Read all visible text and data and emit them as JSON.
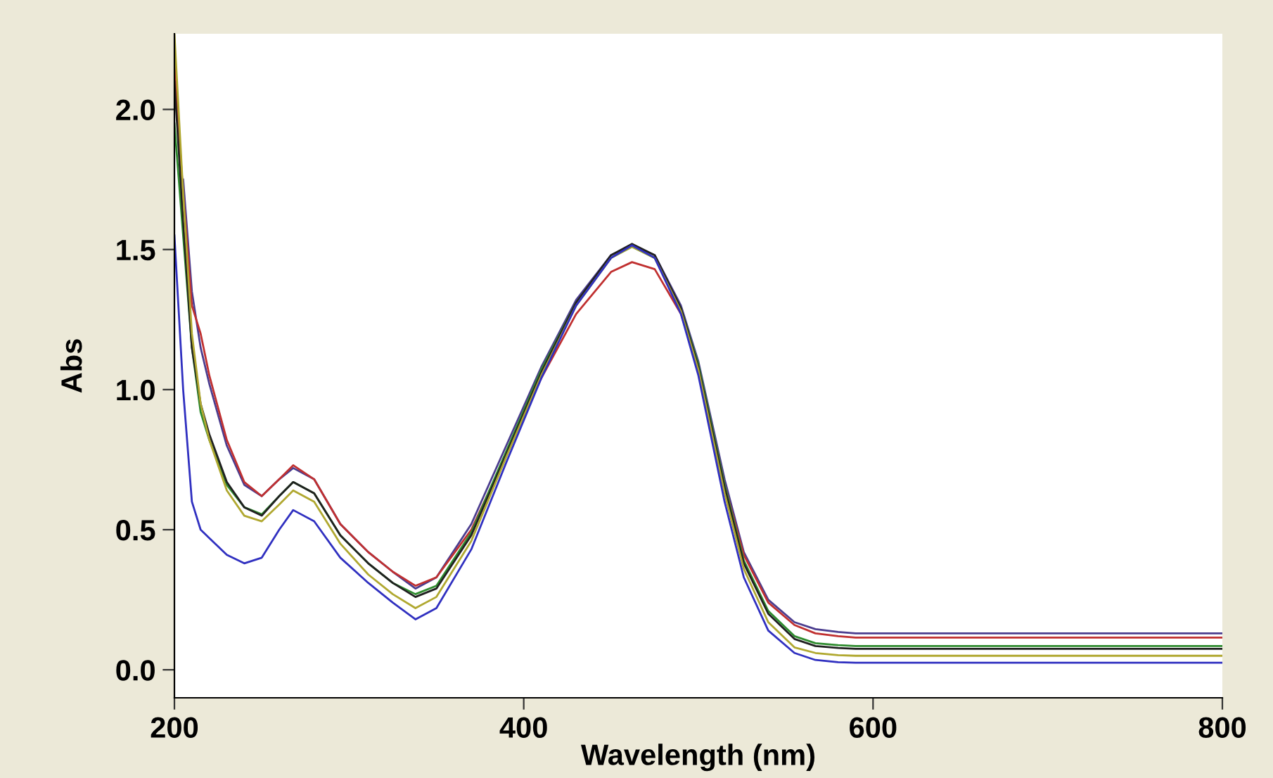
{
  "chart_data": {
    "type": "line",
    "xlabel": "Wavelength (nm)",
    "ylabel": "Abs",
    "x": [
      200,
      205,
      210,
      215,
      220,
      230,
      240,
      250,
      260,
      268,
      280,
      295,
      311,
      325,
      338,
      350,
      370,
      390,
      410,
      430,
      450,
      462,
      475,
      490,
      500,
      515,
      526,
      540,
      555,
      567,
      580,
      590,
      600,
      650,
      700,
      750,
      800
    ],
    "series": [
      {
        "color": "#4b3d8f",
        "values": [
          null,
          1.75,
          1.35,
          1.15,
          1.02,
          0.8,
          0.66,
          0.62,
          0.68,
          0.72,
          0.68,
          0.52,
          0.42,
          0.35,
          0.29,
          0.33,
          0.52,
          0.8,
          1.08,
          1.32,
          1.48,
          1.515,
          1.48,
          1.3,
          1.1,
          0.68,
          0.42,
          0.25,
          0.17,
          0.145,
          0.135,
          0.13,
          0.13,
          0.13,
          0.13,
          0.13,
          0.13
        ]
      },
      {
        "color": "#c03030",
        "values": [
          2.16,
          1.7,
          1.3,
          1.2,
          1.05,
          0.82,
          0.67,
          0.62,
          0.68,
          0.73,
          0.68,
          0.52,
          0.42,
          0.35,
          0.3,
          0.33,
          0.5,
          0.77,
          1.04,
          1.27,
          1.42,
          1.455,
          1.43,
          1.27,
          1.08,
          0.66,
          0.41,
          0.24,
          0.16,
          0.13,
          0.12,
          0.115,
          0.115,
          0.115,
          0.115,
          0.115,
          0.115
        ]
      },
      {
        "color": "#2e8b2e",
        "values": [
          1.95,
          1.55,
          1.15,
          0.92,
          0.82,
          0.66,
          0.58,
          0.555,
          0.62,
          0.67,
          0.63,
          0.48,
          0.38,
          0.31,
          0.27,
          0.3,
          0.49,
          0.78,
          1.07,
          1.31,
          1.47,
          1.51,
          1.47,
          1.29,
          1.09,
          0.66,
          0.39,
          0.21,
          0.12,
          0.095,
          0.088,
          0.085,
          0.085,
          0.085,
          0.085,
          0.085,
          0.085
        ]
      },
      {
        "color": "#202020",
        "values": [
          2.1,
          1.6,
          1.15,
          0.95,
          0.84,
          0.67,
          0.58,
          0.55,
          0.62,
          0.67,
          0.63,
          0.48,
          0.38,
          0.31,
          0.26,
          0.29,
          0.48,
          0.77,
          1.06,
          1.31,
          1.48,
          1.52,
          1.48,
          1.29,
          1.08,
          0.65,
          0.38,
          0.2,
          0.11,
          0.085,
          0.078,
          0.075,
          0.075,
          0.075,
          0.075,
          0.075,
          0.075
        ]
      },
      {
        "color": "#b0a830",
        "values": [
          2.27,
          1.7,
          1.2,
          0.95,
          0.82,
          0.64,
          0.55,
          0.53,
          0.59,
          0.64,
          0.6,
          0.45,
          0.34,
          0.27,
          0.22,
          0.26,
          0.46,
          0.76,
          1.05,
          1.3,
          1.47,
          1.51,
          1.47,
          1.28,
          1.07,
          0.63,
          0.36,
          0.17,
          0.08,
          0.06,
          0.052,
          0.05,
          0.05,
          0.05,
          0.05,
          0.05,
          0.05
        ]
      },
      {
        "color": "#3030c0",
        "values": [
          1.55,
          1.0,
          0.6,
          0.5,
          0.47,
          0.41,
          0.38,
          0.4,
          0.5,
          0.57,
          0.53,
          0.4,
          0.31,
          0.24,
          0.18,
          0.22,
          0.43,
          0.74,
          1.04,
          1.3,
          1.47,
          1.515,
          1.47,
          1.27,
          1.05,
          0.6,
          0.33,
          0.14,
          0.06,
          0.035,
          0.027,
          0.025,
          0.025,
          0.025,
          0.025,
          0.025,
          0.025
        ]
      }
    ],
    "xlim": [
      200,
      800
    ],
    "xticks": [
      200,
      400,
      600,
      800
    ],
    "ylim": [
      -0.1,
      2.27
    ],
    "yticks": [
      {
        "value": 0,
        "label": "0.0"
      },
      {
        "value": 0.5,
        "label": "0.5"
      },
      {
        "value": 1.0,
        "label": "1.0"
      },
      {
        "value": 1.5,
        "label": "1.5"
      },
      {
        "value": 2.0,
        "label": "2.0"
      }
    ],
    "grid": false,
    "legend": false
  }
}
